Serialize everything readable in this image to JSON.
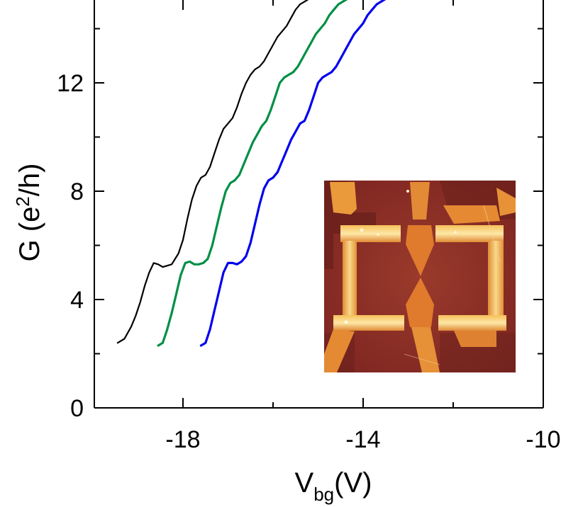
{
  "chart_data": {
    "type": "line",
    "xlabel": {
      "main": "V",
      "sub": "bg",
      "unit": "(V)"
    },
    "ylabel": {
      "main": "G (e",
      "sup": "2",
      "rest": "/h)"
    },
    "xlim": [
      -20,
      -10
    ],
    "ylim": [
      0,
      15
    ],
    "xticks": [
      -18,
      -14,
      -10
    ],
    "xticks_minor": [
      -20,
      -16,
      -12
    ],
    "yticks": [
      0,
      4,
      8,
      12
    ],
    "yticks_minor": [
      2,
      6,
      10,
      14
    ],
    "xtick_labels": [
      "-18",
      "-14",
      "-10"
    ],
    "ytick_labels": [
      "0",
      "4",
      "8",
      "12"
    ],
    "grid": false,
    "legend": "none",
    "series": [
      {
        "color": "#000000",
        "x": [
          -19.45,
          -19.3,
          -19.15,
          -19.05,
          -18.95,
          -18.85,
          -18.75,
          -18.65,
          -18.55,
          -18.45,
          -18.35,
          -18.25,
          -18.1,
          -18.0,
          -17.9,
          -17.8,
          -17.7,
          -17.6,
          -17.5,
          -17.4,
          -17.3,
          -17.2,
          -17.1,
          -17.0,
          -16.9,
          -16.8,
          -16.7,
          -16.6,
          -16.5,
          -16.4,
          -16.3,
          -16.2,
          -16.1,
          -16.0,
          -15.9,
          -15.8,
          -15.7,
          -15.6,
          -15.5,
          -15.4,
          -15.3,
          -15.2,
          -15.1,
          -15.0,
          -14.9,
          -14.8,
          -14.7,
          -14.6,
          -14.5
        ],
        "y": [
          2.4,
          2.55,
          3.0,
          3.4,
          3.9,
          4.5,
          5.0,
          5.35,
          5.3,
          5.2,
          5.25,
          5.3,
          5.7,
          6.2,
          7.0,
          7.7,
          8.2,
          8.5,
          8.6,
          8.9,
          9.4,
          9.9,
          10.3,
          10.5,
          10.7,
          11.1,
          11.6,
          12.0,
          12.3,
          12.5,
          12.6,
          12.8,
          13.1,
          13.4,
          13.7,
          13.9,
          14.1,
          14.4,
          14.7,
          14.9,
          15.0,
          15.1,
          15.2,
          15.3,
          15.4,
          15.5,
          15.6,
          15.7,
          15.8
        ]
      },
      {
        "color": "#008f45",
        "x": [
          -18.55,
          -18.45,
          -18.35,
          -18.25,
          -18.15,
          -18.05,
          -17.95,
          -17.85,
          -17.75,
          -17.65,
          -17.55,
          -17.45,
          -17.35,
          -17.25,
          -17.15,
          -17.05,
          -16.95,
          -16.85,
          -16.75,
          -16.65,
          -16.55,
          -16.45,
          -16.35,
          -16.25,
          -16.15,
          -16.05,
          -15.95,
          -15.85,
          -15.75,
          -15.65,
          -15.55,
          -15.45,
          -15.35,
          -15.25,
          -15.15,
          -15.05,
          -14.95,
          -14.85,
          -14.75,
          -14.65,
          -14.55,
          -14.45,
          -14.35,
          -14.25,
          -14.15,
          -14.05,
          -13.95,
          -13.85,
          -13.75,
          -13.65
        ],
        "y": [
          2.3,
          2.4,
          2.9,
          3.5,
          4.2,
          4.9,
          5.35,
          5.4,
          5.3,
          5.3,
          5.35,
          5.5,
          6.0,
          6.7,
          7.4,
          8.0,
          8.3,
          8.4,
          8.6,
          9.0,
          9.4,
          9.8,
          10.1,
          10.4,
          10.6,
          11.0,
          11.5,
          12.0,
          12.2,
          12.3,
          12.4,
          12.6,
          12.9,
          13.2,
          13.5,
          13.8,
          14.0,
          14.2,
          14.5,
          14.7,
          14.9,
          15.0,
          15.1,
          15.2,
          15.3,
          15.4,
          15.5,
          15.6,
          15.7,
          15.8
        ]
      },
      {
        "color": "#0000ee",
        "x": [
          -17.6,
          -17.5,
          -17.4,
          -17.3,
          -17.2,
          -17.1,
          -17.0,
          -16.9,
          -16.8,
          -16.7,
          -16.6,
          -16.5,
          -16.4,
          -16.3,
          -16.2,
          -16.1,
          -16.0,
          -15.9,
          -15.8,
          -15.7,
          -15.6,
          -15.5,
          -15.4,
          -15.3,
          -15.2,
          -15.1,
          -15.0,
          -14.9,
          -14.8,
          -14.7,
          -14.6,
          -14.5,
          -14.4,
          -14.3,
          -14.2,
          -14.1,
          -14.0,
          -13.9,
          -13.8,
          -13.7,
          -13.6,
          -13.5,
          -13.4,
          -13.3,
          -13.2,
          -13.1,
          -13.0,
          -12.9,
          -12.8,
          -12.7
        ],
        "y": [
          2.3,
          2.4,
          2.9,
          3.6,
          4.3,
          5.0,
          5.35,
          5.35,
          5.3,
          5.4,
          5.6,
          6.1,
          6.8,
          7.5,
          8.1,
          8.4,
          8.5,
          8.7,
          9.1,
          9.5,
          9.9,
          10.2,
          10.5,
          10.6,
          11.0,
          11.5,
          12.0,
          12.2,
          12.3,
          12.4,
          12.6,
          12.9,
          13.2,
          13.5,
          13.8,
          14.0,
          14.2,
          14.5,
          14.7,
          14.9,
          15.0,
          15.1,
          15.2,
          15.3,
          15.4,
          15.5,
          15.6,
          15.7,
          15.8,
          15.9
        ]
      }
    ],
    "inset": {
      "type": "image",
      "colors": {
        "background": "#8e2c26",
        "dark": "#5e1512",
        "mid": "#d8782c",
        "bright": "#f2b443",
        "highlight": "#fde39a"
      }
    }
  }
}
